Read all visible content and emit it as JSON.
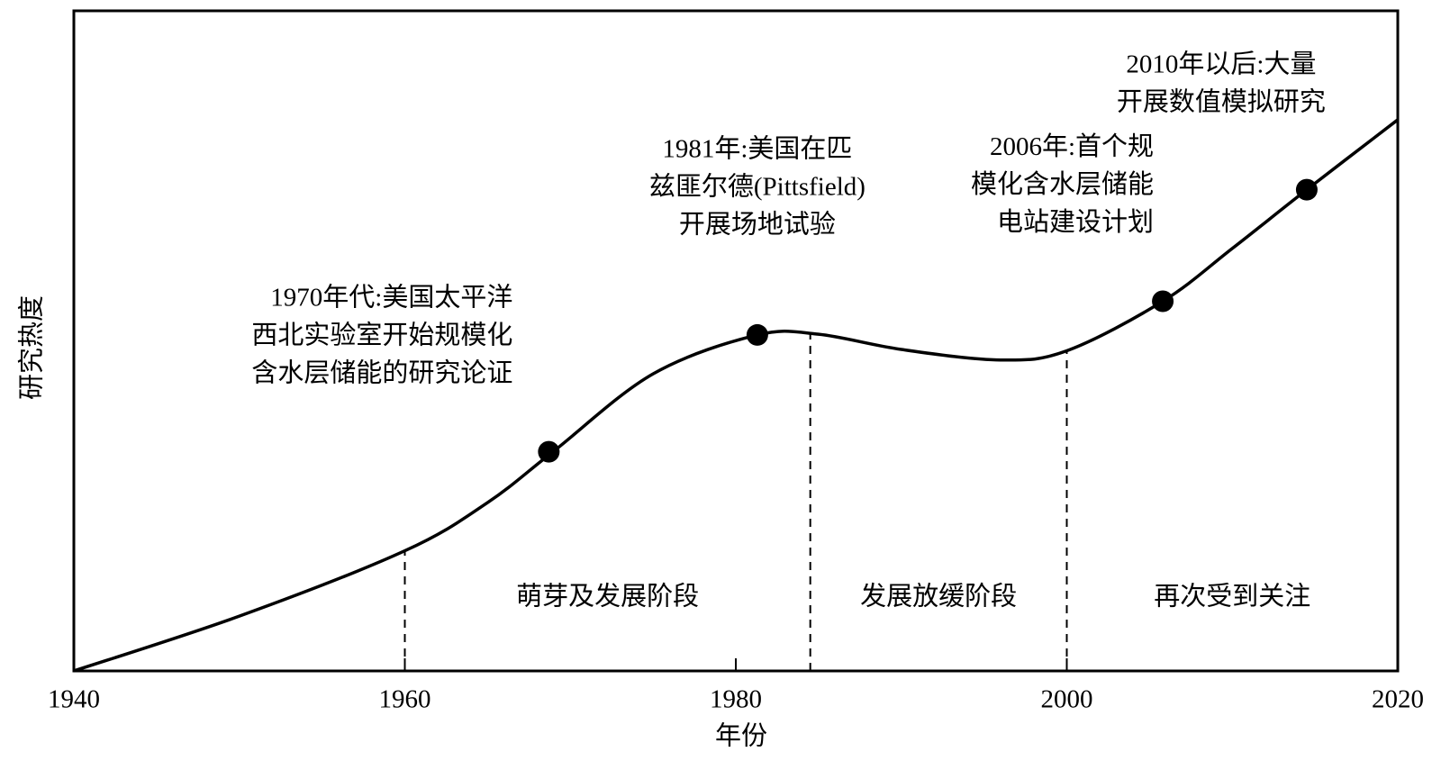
{
  "chart_data": {
    "type": "line",
    "xlabel": "年份",
    "ylabel": "研究热度",
    "xlim": [
      1940,
      2020
    ],
    "xticks": [
      1940,
      1960,
      1980,
      2000,
      2020
    ],
    "ylim": [
      0,
      100
    ],
    "x": [
      1940,
      1950,
      1960,
      1965,
      1969,
      1975,
      1981.3,
      1985,
      1990,
      1996,
      2000,
      2005.8,
      2010,
      2014.5,
      2020
    ],
    "series": [
      {
        "color": "#000000",
        "values": [
          0,
          8.3,
          18.2,
          25.5,
          33.3,
          45,
          50.9,
          51,
          48.7,
          47.1,
          48.5,
          56,
          64,
          72.9,
          83.5
        ]
      }
    ],
    "events": {
      "x": [
        1968.7,
        1981.3,
        2005.8,
        2014.5
      ],
      "values": [
        33.2,
        50.9,
        56,
        72.9
      ],
      "labels": [
        [
          "1970年代:美国太平洋",
          "西北实验室开始规模化",
          "含水层储能的研究论证"
        ],
        [
          "1981年:美国在匹",
          "兹匪尔德(Pittsfield)",
          "开展场地试验"
        ],
        [
          "2006年:首个规",
          "模化含水层储能",
          "电站建设计划"
        ],
        [
          "2010年以后:大量",
          "开展数值模拟研究"
        ]
      ]
    },
    "dividers": {
      "x": [
        1960,
        1984.5,
        2000
      ],
      "values": [
        18.2,
        51,
        48.5
      ]
    },
    "stages": [
      "萌芽及发展阶段",
      "发展放缓阶段",
      "再次受到关注"
    ]
  }
}
